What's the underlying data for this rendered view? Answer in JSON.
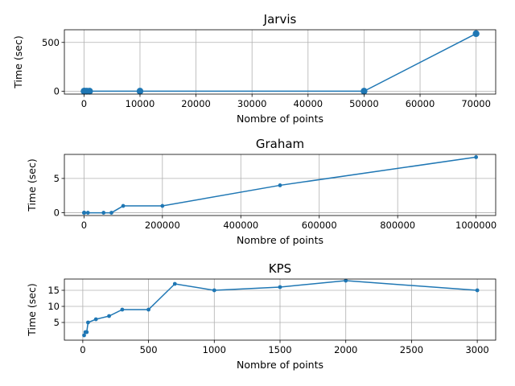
{
  "chart_data": [
    {
      "type": "line",
      "title": "Jarvis",
      "xlabel": "Nombre of points",
      "ylabel": "Time (sec)",
      "xlim": [
        -3500,
        73500
      ],
      "ylim": [
        -30,
        630
      ],
      "xticks": [
        0,
        10000,
        20000,
        30000,
        40000,
        50000,
        60000,
        70000
      ],
      "yticks": [
        0,
        500
      ],
      "grid": true,
      "marker": "large-dot",
      "color": "#1f77b4",
      "x": [
        10,
        100,
        500,
        1000,
        10000,
        50000,
        70000
      ],
      "y": [
        0,
        0,
        0,
        0,
        0,
        0,
        590
      ]
    },
    {
      "type": "line",
      "title": "Graham",
      "xlabel": "Nombre of points",
      "ylabel": "Time (sec)",
      "xlim": [
        -50000,
        1050000
      ],
      "ylim": [
        -0.4,
        8.5
      ],
      "xticks": [
        0,
        200000,
        400000,
        600000,
        800000,
        1000000
      ],
      "yticks": [
        0,
        5
      ],
      "grid": true,
      "marker": "small-dot",
      "color": "#1f77b4",
      "x": [
        10,
        100,
        1000,
        10000,
        50000,
        70000,
        100000,
        200000,
        500000,
        1000000
      ],
      "y": [
        0,
        0,
        0,
        0,
        0,
        0,
        1,
        1,
        4,
        8.1
      ]
    },
    {
      "type": "line",
      "title": "KPS",
      "xlabel": "Nombre of points",
      "ylabel": "Time (sec)",
      "xlim": [
        -140,
        3140
      ],
      "ylim": [
        -0.5,
        18.5
      ],
      "xticks": [
        0,
        500,
        1000,
        1500,
        2000,
        2500,
        3000
      ],
      "yticks": [
        5,
        10,
        15
      ],
      "grid": true,
      "marker": "small-dot",
      "color": "#1f77b4",
      "x": [
        10,
        20,
        30,
        40,
        100,
        200,
        300,
        500,
        700,
        1000,
        1500,
        2000,
        3000
      ],
      "y": [
        1,
        2,
        2,
        5,
        6,
        7,
        9,
        9,
        17,
        15,
        16,
        18,
        15
      ]
    }
  ]
}
